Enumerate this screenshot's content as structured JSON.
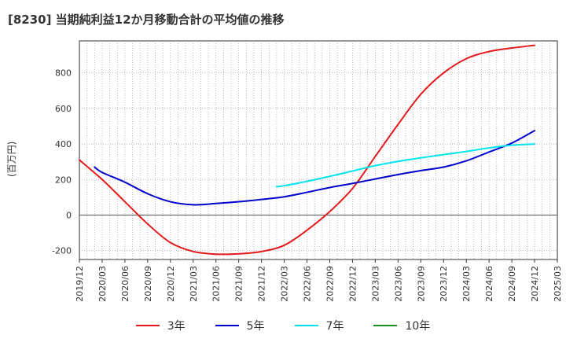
{
  "title": "[8230]  当期純利益12か月移動合計の平均値の推移",
  "chart_data": {
    "type": "line",
    "title": "[8230]  当期純利益12か月移動合計の平均値の推移",
    "ylabel": "(百万円)",
    "xlabel": "",
    "ylim": [
      -250,
      980
    ],
    "yticks": [
      -200,
      0,
      200,
      400,
      600,
      800
    ],
    "xlim": [
      "2019/12",
      "2025/03"
    ],
    "xticks": [
      "2019/12",
      "2020/03",
      "2020/06",
      "2020/09",
      "2020/12",
      "2021/03",
      "2021/06",
      "2021/09",
      "2021/12",
      "2022/03",
      "2022/06",
      "2022/09",
      "2022/12",
      "2023/03",
      "2023/06",
      "2023/09",
      "2023/12",
      "2024/03",
      "2024/06",
      "2024/09",
      "2024/12",
      "2025/03"
    ],
    "grid": true,
    "legend_position": "bottom",
    "series": [
      {
        "name": "3年",
        "color": "#e31a1c",
        "x": [
          "2019/12",
          "2020/03",
          "2020/06",
          "2020/09",
          "2020/12",
          "2021/03",
          "2021/06",
          "2021/09",
          "2021/12",
          "2022/03",
          "2022/06",
          "2022/09",
          "2022/12",
          "2023/03",
          "2023/06",
          "2023/09",
          "2023/12",
          "2024/03",
          "2024/06",
          "2024/09",
          "2024/12"
        ],
        "values": [
          310,
          200,
          75,
          -50,
          -155,
          -205,
          -220,
          -218,
          -205,
          -170,
          -85,
          20,
          150,
          330,
          510,
          680,
          800,
          880,
          920,
          940,
          955
        ]
      },
      {
        "name": "5年",
        "color": "#0000cc",
        "x": [
          "2020/02",
          "2020/03",
          "2020/06",
          "2020/09",
          "2020/12",
          "2021/03",
          "2021/06",
          "2021/09",
          "2021/12",
          "2022/03",
          "2022/06",
          "2022/09",
          "2022/12",
          "2023/03",
          "2023/06",
          "2023/09",
          "2023/12",
          "2024/03",
          "2024/06",
          "2024/09",
          "2024/12"
        ],
        "values": [
          270,
          240,
          185,
          120,
          75,
          58,
          65,
          75,
          88,
          103,
          128,
          155,
          178,
          203,
          228,
          250,
          270,
          305,
          355,
          405,
          475
        ]
      },
      {
        "name": "7年",
        "color": "#00e5ee",
        "x": [
          "2022/02",
          "2022/03",
          "2022/06",
          "2022/09",
          "2022/12",
          "2023/03",
          "2023/06",
          "2023/09",
          "2023/12",
          "2024/03",
          "2024/06",
          "2024/09",
          "2024/12"
        ],
        "values": [
          160,
          165,
          190,
          218,
          248,
          278,
          302,
          322,
          340,
          358,
          378,
          393,
          400
        ]
      },
      {
        "name": "10年",
        "color": "#228b22",
        "x": [],
        "values": []
      }
    ]
  }
}
